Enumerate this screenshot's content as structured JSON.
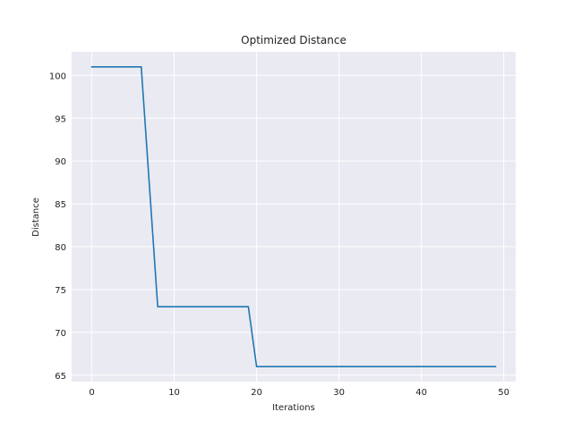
{
  "chart_data": {
    "type": "line",
    "title": "Optimized Distance",
    "xlabel": "Iterations",
    "ylabel": "Distance",
    "xlim": [
      -2.45,
      51.45
    ],
    "ylim": [
      64.25,
      102.75
    ],
    "xticks": [
      0,
      10,
      20,
      30,
      40,
      50
    ],
    "yticks": [
      65,
      70,
      75,
      80,
      85,
      90,
      95,
      100
    ],
    "grid": true,
    "colors": {
      "background": "#eaeaf2",
      "grid": "#ffffff",
      "line": "#1f77b4"
    },
    "series": [
      {
        "x": [
          0,
          1,
          2,
          3,
          4,
          5,
          6,
          7,
          8,
          9,
          10,
          11,
          12,
          13,
          14,
          15,
          16,
          17,
          18,
          19,
          20,
          21,
          22,
          23,
          24,
          25,
          26,
          27,
          28,
          29,
          30,
          31,
          32,
          33,
          34,
          35,
          36,
          37,
          38,
          39,
          40,
          41,
          42,
          43,
          44,
          45,
          46,
          47,
          48,
          49
        ],
        "y": [
          101,
          101,
          101,
          101,
          101,
          101,
          101,
          87,
          73,
          73,
          73,
          73,
          73,
          73,
          73,
          73,
          73,
          73,
          73,
          73,
          66,
          66,
          66,
          66,
          66,
          66,
          66,
          66,
          66,
          66,
          66,
          66,
          66,
          66,
          66,
          66,
          66,
          66,
          66,
          66,
          66,
          66,
          66,
          66,
          66,
          66,
          66,
          66,
          66,
          66
        ]
      }
    ]
  }
}
